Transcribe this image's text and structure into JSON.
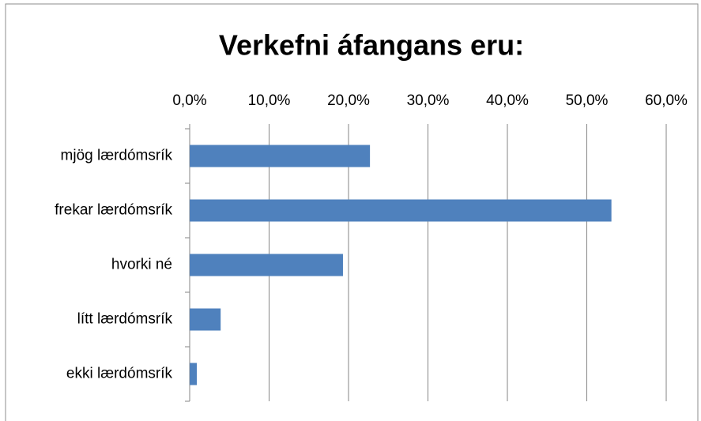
{
  "chart_data": {
    "type": "bar",
    "orientation": "horizontal",
    "title": "Verkefni áfangans eru:",
    "categories": [
      "mjög lærdómsrík",
      "frekar lærdómsrík",
      "hvorki né",
      "lítt lærdómsrík",
      "ekki lærdómsrík"
    ],
    "values": [
      22.7,
      53.1,
      19.3,
      3.9,
      0.9
    ],
    "color": "#4f81bd",
    "xlim": [
      0,
      60
    ],
    "xticks": [
      {
        "value": 0,
        "label": "0,0%"
      },
      {
        "value": 10,
        "label": "10,0%"
      },
      {
        "value": 20,
        "label": "20,0%"
      },
      {
        "value": 30,
        "label": "30,0%"
      },
      {
        "value": 40,
        "label": "40,0%"
      },
      {
        "value": 50,
        "label": "50,0%"
      },
      {
        "value": 60,
        "label": "60,0%"
      }
    ],
    "grid": true
  }
}
